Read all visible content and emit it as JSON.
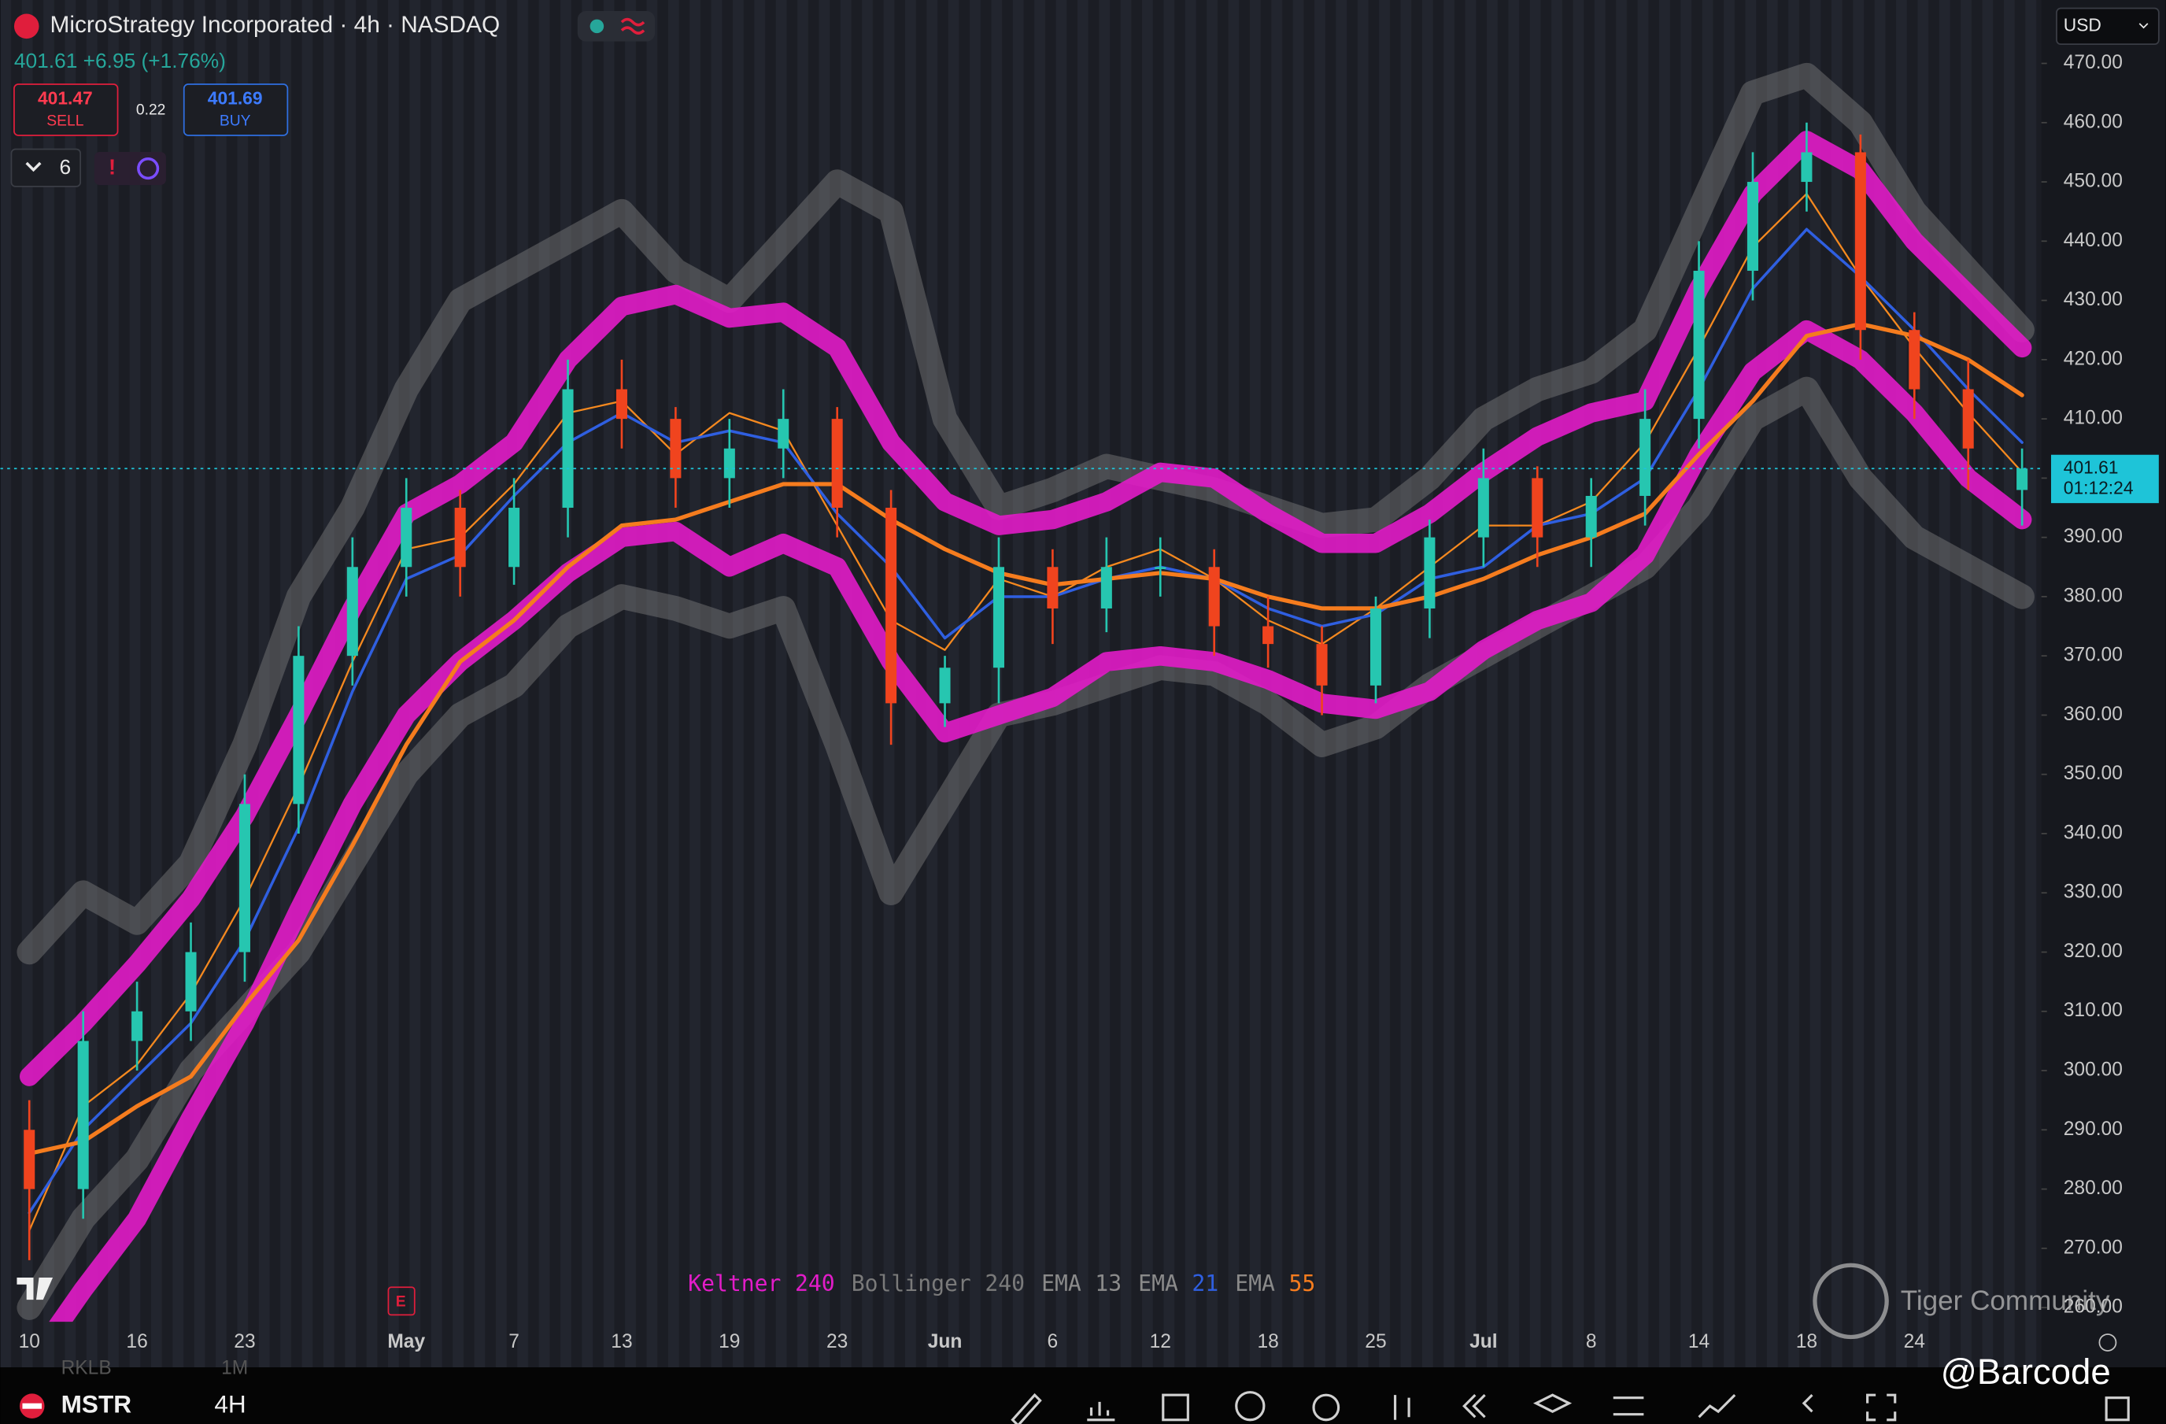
{
  "header": {
    "symbol_name": "MicroStrategy Incorporated · 4h · NASDAQ",
    "quote": "401.61 +6.95 (+1.76%)",
    "sell_price": "401.47",
    "sell_label": "SELL",
    "spread": "0.22",
    "buy_price": "401.69",
    "buy_label": "BUY",
    "indicator_count": "6",
    "currency": "USD"
  },
  "watermark": "Tiger Community",
  "footer": {
    "symbol": "MSTR",
    "interval": "4H",
    "hidden_symbol": "RKLB",
    "hidden_interval": "1M",
    "handle": "@Barcode"
  },
  "chart_data": {
    "type": "candlestick",
    "categories": [
      "10",
      null,
      "16",
      null,
      "23",
      null,
      null,
      "May",
      null,
      "7",
      null,
      "13",
      null,
      "19",
      null,
      "23",
      null,
      "Jun",
      null,
      "6",
      null,
      "12",
      null,
      "18",
      null,
      "25",
      null,
      "Jul",
      null,
      "8",
      null,
      "14",
      null,
      "18",
      null,
      "24",
      null,
      null
    ],
    "open": [
      290,
      280,
      305,
      310,
      320,
      345,
      370,
      385,
      395,
      385,
      395,
      415,
      410,
      400,
      405,
      410,
      395,
      362,
      368,
      385,
      378,
      385,
      385,
      375,
      372,
      365,
      378,
      390,
      400,
      390,
      397,
      410,
      435,
      450,
      455,
      425,
      415,
      398
    ],
    "high": [
      295,
      310,
      315,
      325,
      350,
      375,
      390,
      400,
      398,
      400,
      420,
      420,
      412,
      410,
      415,
      412,
      398,
      370,
      390,
      388,
      390,
      390,
      388,
      380,
      375,
      380,
      393,
      405,
      402,
      400,
      415,
      440,
      455,
      460,
      458,
      428,
      420,
      405
    ],
    "low": [
      268,
      275,
      300,
      305,
      315,
      340,
      365,
      380,
      380,
      382,
      390,
      405,
      395,
      395,
      400,
      390,
      355,
      358,
      362,
      372,
      374,
      380,
      370,
      368,
      360,
      362,
      373,
      385,
      385,
      385,
      392,
      405,
      430,
      445,
      420,
      410,
      398,
      392
    ],
    "close": [
      280,
      305,
      310,
      320,
      345,
      370,
      385,
      395,
      385,
      395,
      415,
      410,
      400,
      405,
      410,
      395,
      362,
      368,
      385,
      378,
      385,
      385,
      375,
      372,
      365,
      378,
      390,
      400,
      390,
      397,
      410,
      435,
      450,
      455,
      425,
      415,
      405,
      401.61
    ],
    "up_color": "#26c6b0",
    "down_color": "#f0441e",
    "last_price": 401.61,
    "countdown": "01:12:24",
    "last_price_color": "#1ec4d8",
    "ylim": [
      257.6,
      480.7
    ],
    "yticks": [
      {
        "value": 470,
        "label": "470.00"
      },
      {
        "value": 460,
        "label": "460.00"
      },
      {
        "value": 450,
        "label": "450.00"
      },
      {
        "value": 440,
        "label": "440.00"
      },
      {
        "value": 430,
        "label": "430.00"
      },
      {
        "value": 420,
        "label": "420.00"
      },
      {
        "value": 410,
        "label": "410.00"
      },
      {
        "value": 400,
        "label": "400.00"
      },
      {
        "value": 390,
        "label": "390.00"
      },
      {
        "value": 380,
        "label": "380.00"
      },
      {
        "value": 370,
        "label": "370.00"
      },
      {
        "value": 360,
        "label": "360.00"
      },
      {
        "value": 350,
        "label": "350.00"
      },
      {
        "value": 340,
        "label": "340.00"
      },
      {
        "value": 330,
        "label": "330.00"
      },
      {
        "value": 320,
        "label": "320.00"
      },
      {
        "value": 310,
        "label": "310.00"
      },
      {
        "value": 300,
        "label": "300.00"
      },
      {
        "value": 290,
        "label": "290.00"
      },
      {
        "value": 280,
        "label": "280.00"
      },
      {
        "value": 270,
        "label": "270.00"
      },
      {
        "value": 260,
        "label": "260.00"
      }
    ],
    "grid": false,
    "indicators": [
      {
        "name": "Keltner",
        "param": 240,
        "color": "#e21cc8",
        "legend_colors": [
          "#e21cc8",
          "#e21cc8"
        ],
        "series": [
          {
            "values": [
              299,
              308,
              318,
              329,
              343,
              360,
              378,
              394,
              399,
              406,
              420,
              429,
              431,
              427,
              428,
              422,
              406,
              396,
              392,
              393,
              396,
              401,
              400,
              394,
              389,
              389,
              394,
              401,
              407,
              411,
              413,
              432,
              448,
              457,
              452,
              440,
              431,
              422
            ]
          },
          {
            "values": [
              250,
              263,
              275,
              292,
              308,
              327,
              345,
              360,
              369,
              376,
              384,
              390,
              391,
              385,
              389,
              385,
              369,
              357,
              360,
              363,
              369,
              370,
              369,
              366,
              362,
              361,
              364,
              371,
              376,
              379,
              387,
              404,
              418,
              425,
              420,
              411,
              400,
              393
            ]
          }
        ]
      },
      {
        "name": "Bollinger",
        "param": 240,
        "color": "#8a8a8a",
        "legend_colors": [
          "#7a7a7a",
          "#7a7a7a"
        ],
        "series": [
          {
            "values": [
              320,
              330,
              325,
              335,
              355,
              380,
              395,
              415,
              430,
              435,
              440,
              445,
              435,
              430,
              440,
              450,
              445,
              410,
              395,
              398,
              402,
              400,
              398,
              395,
              392,
              393,
              400,
              410,
              415,
              418,
              425,
              445,
              465,
              468,
              460,
              445,
              435,
              425
            ]
          },
          {
            "values": [
              260,
              275,
              285,
              300,
              310,
              320,
              335,
              350,
              360,
              365,
              375,
              380,
              378,
              375,
              378,
              355,
              330,
              345,
              360,
              362,
              365,
              368,
              367,
              362,
              355,
              358,
              365,
              370,
              375,
              380,
              385,
              395,
              410,
              415,
              400,
              390,
              385,
              380
            ]
          }
        ]
      },
      {
        "name": "EMA",
        "param": 13,
        "color": "#f5891f",
        "legend_colors": [
          "#8a8a8a",
          "#8a8a8a"
        ],
        "series": [
          {
            "values": [
              273,
              294,
              301,
              313,
              329,
              348,
              369,
              388,
              390,
              399,
              411,
              413,
              404,
              411,
              408,
              392,
              376,
              371,
              383,
              380,
              385,
              388,
              383,
              376,
              372,
              378,
              385,
              392,
              392,
              396,
              406,
              422,
              439,
              448,
              434,
              422,
              411,
              401
            ]
          }
        ]
      },
      {
        "name": "EMA",
        "param": 21,
        "color": "#2f5fe0",
        "legend_colors": [
          "#8a8a8a",
          "#2f5fe0"
        ],
        "series": [
          {
            "values": [
              276,
              290,
              299,
              308,
              322,
              341,
              364,
              383,
              387,
              397,
              406,
              411,
              406,
              408,
              406,
              394,
              385,
              373,
              380,
              380,
              383,
              385,
              383,
              378,
              375,
              377,
              383,
              385,
              392,
              394,
              400,
              415,
              432,
              442,
              434,
              425,
              415,
              406
            ]
          }
        ]
      },
      {
        "name": "EMA",
        "param": 55,
        "color": "#f57c1e",
        "legend_colors": [
          "#8a8a8a",
          "#f57c1e"
        ],
        "series": [
          {
            "values": [
              286,
              288,
              294,
              299,
              311,
              322,
              338,
              355,
              369,
              376,
              385,
              392,
              393,
              396,
              399,
              399,
              393,
              388,
              384,
              382,
              383,
              384,
              383,
              380,
              378,
              378,
              380,
              383,
              387,
              390,
              394,
              404,
              413,
              424,
              426,
              424,
              420,
              414
            ]
          }
        ]
      }
    ]
  }
}
